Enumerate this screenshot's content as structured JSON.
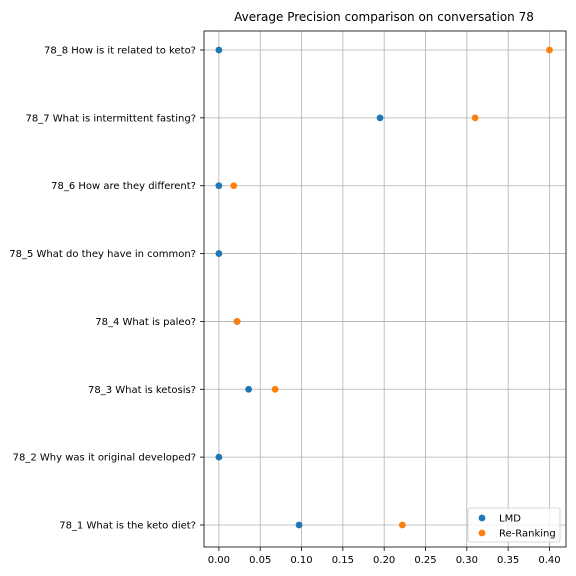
{
  "chart_data": {
    "type": "scatter",
    "title": "Average Precision comparison on conversation 78",
    "xlabel": "",
    "ylabel": "",
    "xlim": [
      -0.018,
      0.42
    ],
    "x_ticks": [
      "0.00",
      "0.05",
      "0.10",
      "0.15",
      "0.20",
      "0.25",
      "0.30",
      "0.35",
      "0.40"
    ],
    "categories": [
      "78_1 What is the keto diet?",
      "78_2 Why was it original developed?",
      "78_3 What is ketosis?",
      "78_4 What is paleo?",
      "78_5 What do they have in common?",
      "78_6 How are they different?",
      "78_7 What is intermittent fasting?",
      "78_8 How is it related to keto?"
    ],
    "series": [
      {
        "name": "LMD",
        "color": "#1f77b4",
        "values": [
          0.097,
          0.0,
          0.036,
          0.022,
          0.0,
          0.0,
          0.195,
          0.0
        ]
      },
      {
        "name": "Re-Ranking",
        "color": "#ff7f0e",
        "values": [
          0.222,
          null,
          0.068,
          0.022,
          null,
          0.018,
          0.31,
          0.4
        ]
      }
    ],
    "grid": true,
    "legend_position": "lower-right"
  }
}
